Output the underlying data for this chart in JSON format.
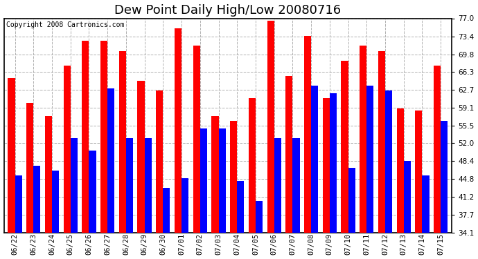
{
  "title": "Dew Point Daily High/Low 20080716",
  "copyright": "Copyright 2008 Cartronics.com",
  "dates": [
    "06/22",
    "06/23",
    "06/24",
    "06/25",
    "06/26",
    "06/27",
    "06/28",
    "06/29",
    "06/30",
    "07/01",
    "07/02",
    "07/03",
    "07/04",
    "07/05",
    "07/06",
    "07/07",
    "07/08",
    "07/09",
    "07/10",
    "07/11",
    "07/12",
    "07/13",
    "07/14",
    "07/15"
  ],
  "highs": [
    65.0,
    60.0,
    57.5,
    67.5,
    72.5,
    72.5,
    70.5,
    64.5,
    62.5,
    75.0,
    71.5,
    57.5,
    56.5,
    61.0,
    76.5,
    65.5,
    73.5,
    61.0,
    68.5,
    71.5,
    70.5,
    59.0,
    58.5,
    67.5
  ],
  "lows": [
    45.5,
    47.5,
    46.5,
    53.0,
    50.5,
    63.0,
    53.0,
    53.0,
    43.0,
    45.0,
    55.0,
    55.0,
    44.5,
    40.5,
    53.0,
    53.0,
    63.5,
    62.0,
    47.0,
    63.5,
    62.5,
    48.5,
    45.5,
    56.5
  ],
  "high_color": "#ff0000",
  "low_color": "#0000ff",
  "bg_color": "#ffffff",
  "grid_color": "#b0b0b0",
  "yticks": [
    34.1,
    37.7,
    41.2,
    44.8,
    48.4,
    52.0,
    55.5,
    59.1,
    62.7,
    66.3,
    69.8,
    73.4,
    77.0
  ],
  "ymin": 34.1,
  "ymax": 77.0,
  "title_fontsize": 13,
  "copyright_fontsize": 7,
  "tick_fontsize": 7.5,
  "bar_width": 0.38,
  "figwidth": 6.9,
  "figheight": 3.75,
  "dpi": 100
}
